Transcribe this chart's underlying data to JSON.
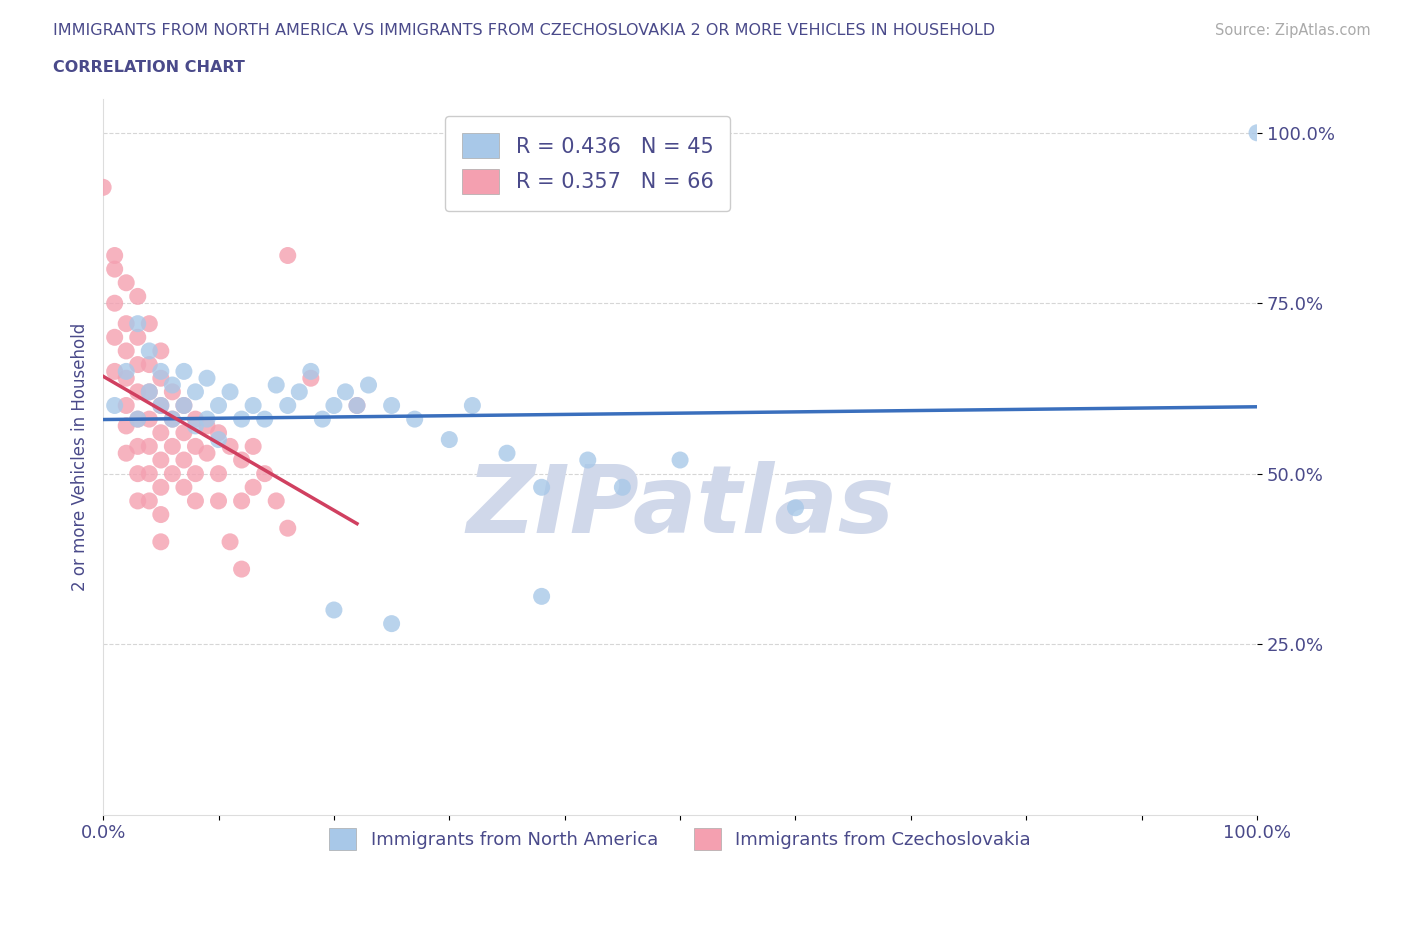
{
  "title_line1": "IMMIGRANTS FROM NORTH AMERICA VS IMMIGRANTS FROM CZECHOSLOVAKIA 2 OR MORE VEHICLES IN HOUSEHOLD",
  "title_line2": "CORRELATION CHART",
  "source_text": "Source: ZipAtlas.com",
  "ylabel": "2 or more Vehicles in Household",
  "watermark": "ZIPatlas",
  "legend_blue_R": "R = 0.436",
  "legend_blue_N": "N = 45",
  "legend_pink_R": "R = 0.357",
  "legend_pink_N": "N = 66",
  "blue_color": "#a8c8e8",
  "pink_color": "#f4a0b0",
  "blue_line_color": "#3a6fbd",
  "pink_line_color": "#d04060",
  "blue_scatter": [
    [
      0.01,
      0.6
    ],
    [
      0.02,
      0.65
    ],
    [
      0.03,
      0.58
    ],
    [
      0.03,
      0.72
    ],
    [
      0.04,
      0.62
    ],
    [
      0.04,
      0.68
    ],
    [
      0.05,
      0.6
    ],
    [
      0.05,
      0.65
    ],
    [
      0.06,
      0.58
    ],
    [
      0.06,
      0.63
    ],
    [
      0.07,
      0.6
    ],
    [
      0.07,
      0.65
    ],
    [
      0.08,
      0.57
    ],
    [
      0.08,
      0.62
    ],
    [
      0.09,
      0.58
    ],
    [
      0.09,
      0.64
    ],
    [
      0.1,
      0.6
    ],
    [
      0.1,
      0.55
    ],
    [
      0.11,
      0.62
    ],
    [
      0.12,
      0.58
    ],
    [
      0.13,
      0.6
    ],
    [
      0.14,
      0.58
    ],
    [
      0.15,
      0.63
    ],
    [
      0.16,
      0.6
    ],
    [
      0.17,
      0.62
    ],
    [
      0.18,
      0.65
    ],
    [
      0.19,
      0.58
    ],
    [
      0.2,
      0.6
    ],
    [
      0.21,
      0.62
    ],
    [
      0.22,
      0.6
    ],
    [
      0.23,
      0.63
    ],
    [
      0.25,
      0.6
    ],
    [
      0.27,
      0.58
    ],
    [
      0.3,
      0.55
    ],
    [
      0.32,
      0.6
    ],
    [
      0.35,
      0.53
    ],
    [
      0.38,
      0.48
    ],
    [
      0.42,
      0.52
    ],
    [
      0.45,
      0.48
    ],
    [
      0.5,
      0.52
    ],
    [
      0.6,
      0.45
    ],
    [
      0.2,
      0.3
    ],
    [
      0.25,
      0.28
    ],
    [
      0.38,
      0.32
    ],
    [
      1.0,
      1.0
    ]
  ],
  "pink_scatter": [
    [
      0.0,
      0.92
    ],
    [
      0.01,
      0.82
    ],
    [
      0.01,
      0.75
    ],
    [
      0.01,
      0.7
    ],
    [
      0.01,
      0.65
    ],
    [
      0.01,
      0.8
    ],
    [
      0.02,
      0.78
    ],
    [
      0.02,
      0.72
    ],
    [
      0.02,
      0.68
    ],
    [
      0.02,
      0.64
    ],
    [
      0.02,
      0.6
    ],
    [
      0.02,
      0.57
    ],
    [
      0.02,
      0.53
    ],
    [
      0.03,
      0.76
    ],
    [
      0.03,
      0.7
    ],
    [
      0.03,
      0.66
    ],
    [
      0.03,
      0.62
    ],
    [
      0.03,
      0.58
    ],
    [
      0.03,
      0.54
    ],
    [
      0.03,
      0.5
    ],
    [
      0.03,
      0.46
    ],
    [
      0.04,
      0.72
    ],
    [
      0.04,
      0.66
    ],
    [
      0.04,
      0.62
    ],
    [
      0.04,
      0.58
    ],
    [
      0.04,
      0.54
    ],
    [
      0.04,
      0.5
    ],
    [
      0.04,
      0.46
    ],
    [
      0.05,
      0.68
    ],
    [
      0.05,
      0.64
    ],
    [
      0.05,
      0.6
    ],
    [
      0.05,
      0.56
    ],
    [
      0.05,
      0.52
    ],
    [
      0.05,
      0.48
    ],
    [
      0.05,
      0.44
    ],
    [
      0.05,
      0.4
    ],
    [
      0.06,
      0.62
    ],
    [
      0.06,
      0.58
    ],
    [
      0.06,
      0.54
    ],
    [
      0.06,
      0.5
    ],
    [
      0.07,
      0.6
    ],
    [
      0.07,
      0.56
    ],
    [
      0.07,
      0.52
    ],
    [
      0.07,
      0.48
    ],
    [
      0.08,
      0.58
    ],
    [
      0.08,
      0.54
    ],
    [
      0.08,
      0.5
    ],
    [
      0.08,
      0.46
    ],
    [
      0.09,
      0.57
    ],
    [
      0.09,
      0.53
    ],
    [
      0.1,
      0.56
    ],
    [
      0.1,
      0.5
    ],
    [
      0.1,
      0.46
    ],
    [
      0.11,
      0.54
    ],
    [
      0.11,
      0.4
    ],
    [
      0.12,
      0.52
    ],
    [
      0.12,
      0.46
    ],
    [
      0.12,
      0.36
    ],
    [
      0.13,
      0.54
    ],
    [
      0.13,
      0.48
    ],
    [
      0.14,
      0.5
    ],
    [
      0.15,
      0.46
    ],
    [
      0.16,
      0.42
    ],
    [
      0.16,
      0.82
    ],
    [
      0.18,
      0.64
    ],
    [
      0.22,
      0.6
    ]
  ],
  "xlim": [
    0.0,
    1.0
  ],
  "ylim": [
    0.0,
    1.05
  ],
  "x_ticks": [
    0.0,
    0.1,
    0.2,
    0.3,
    0.4,
    0.5,
    0.6,
    0.7,
    0.8,
    0.9,
    1.0
  ],
  "y_tick_labels": [
    "25.0%",
    "50.0%",
    "75.0%",
    "100.0%"
  ],
  "y_tick_values": [
    0.25,
    0.5,
    0.75,
    1.0
  ],
  "grid_color": "#cccccc",
  "title_color": "#4a4a8a",
  "axis_label_color": "#4a4a8a",
  "tick_color": "#4a4a8a",
  "source_color": "#aaaaaa",
  "watermark_color": "#d0d8ea"
}
